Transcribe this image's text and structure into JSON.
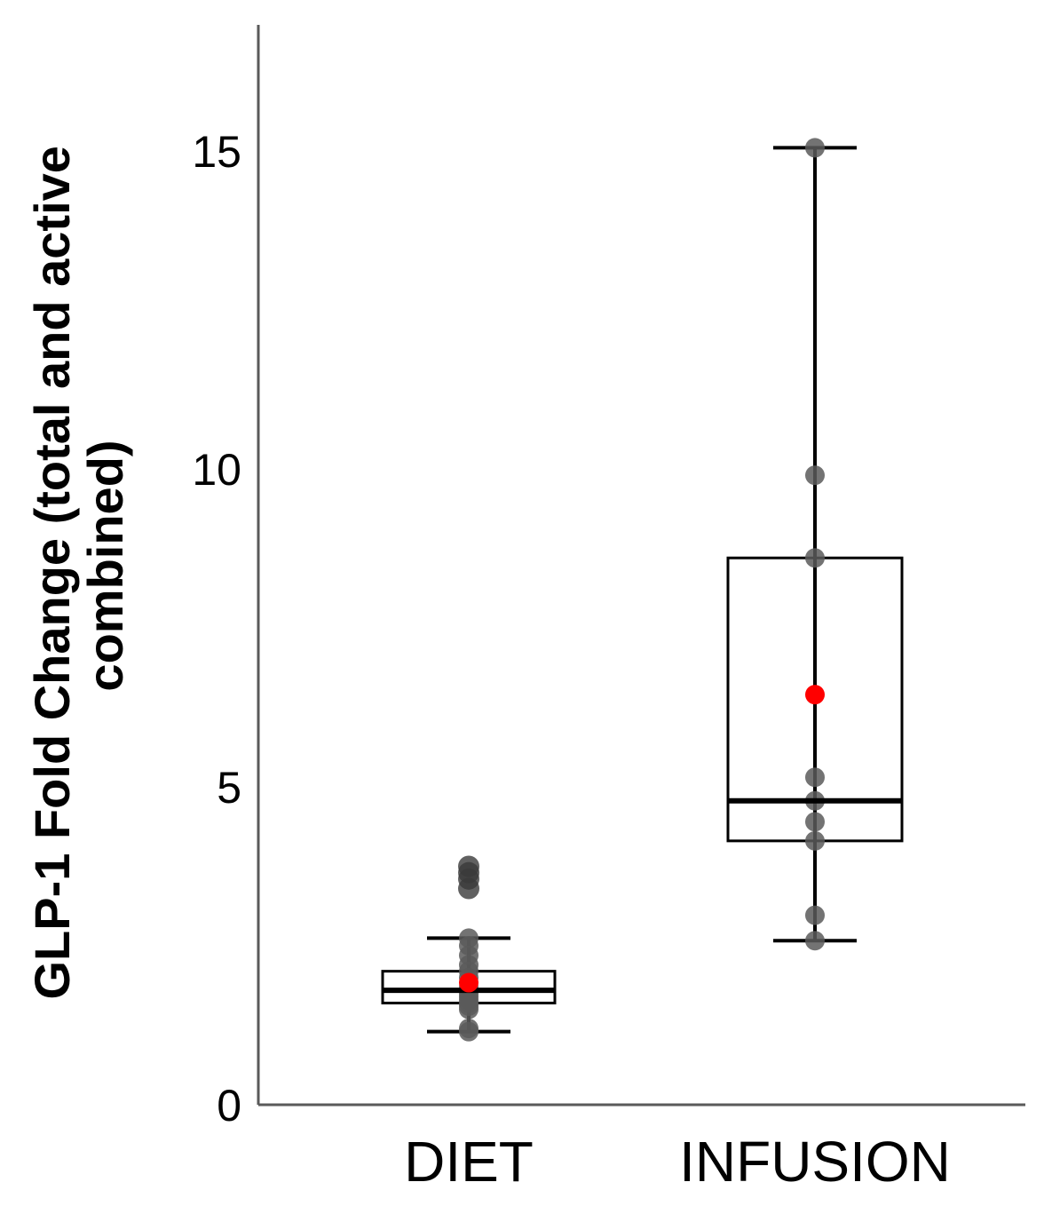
{
  "chart_data": {
    "type": "box",
    "title": "",
    "xlabel": "",
    "ylabel": "GLP-1 Fold Change (total and active combined)",
    "ylabel_lines": [
      "GLP-1 Fold Change (total and active",
      "combined)"
    ],
    "ylim": [
      0,
      17
    ],
    "yticks": [
      0,
      5,
      10,
      15
    ],
    "ytick_labels": [
      "0",
      "5",
      "10",
      "15"
    ],
    "grid": false,
    "legend": "none",
    "categories": [
      "DIET",
      "INFUSION"
    ],
    "boxes": [
      {
        "category": "DIET",
        "whisker_low": 1.15,
        "q1": 1.6,
        "median": 1.8,
        "q3": 2.1,
        "whisker_high": 2.62,
        "mean": 1.92,
        "points": [
          1.15,
          1.2,
          1.5,
          1.55,
          1.6,
          1.65,
          1.7,
          1.75,
          1.85,
          2.0,
          2.1,
          2.2,
          2.35,
          2.5,
          2.62
        ],
        "outliers": [
          3.4,
          3.55,
          3.65,
          3.75
        ]
      },
      {
        "category": "INFUSION",
        "whisker_low": 2.58,
        "q1": 4.15,
        "median": 4.78,
        "q3": 8.6,
        "whisker_high": 15.05,
        "mean": 6.45,
        "points": [
          2.58,
          2.98,
          4.15,
          4.45,
          4.78,
          5.15,
          8.6,
          9.9,
          15.05
        ],
        "outliers": []
      }
    ],
    "colors": {
      "point": "#5a5a5a",
      "outlier": "#3a3a3a",
      "mean": "#ff0000",
      "box_edge": "#000000",
      "axis": "#5a5a5a"
    }
  }
}
